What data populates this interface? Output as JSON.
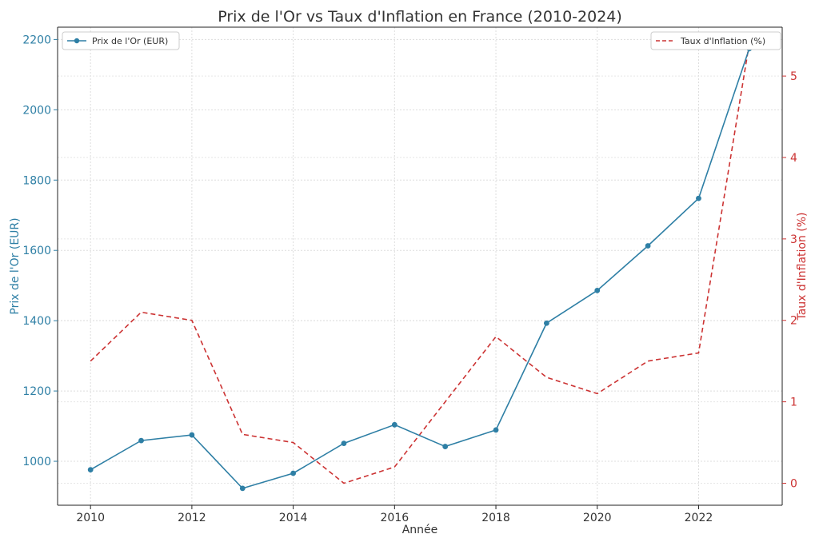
{
  "chart_data": {
    "type": "line",
    "title": "Prix de l'Or vs Taux d'Inflation en France (2010-2024)",
    "xlabel": "Année",
    "ylabel_left": "Prix de l'Or (EUR)",
    "ylabel_right": "Taux d'Inflation (%)",
    "x": [
      2010,
      2011,
      2012,
      2013,
      2014,
      2015,
      2016,
      2017,
      2018,
      2019,
      2020,
      2021,
      2022,
      2023
    ],
    "x_ticks": [
      "2010",
      "2012",
      "2014",
      "2016",
      "2018",
      "2020",
      "2022"
    ],
    "xlim": [
      2009.35,
      2023.65
    ],
    "ylim_left": [
      875,
      2235
    ],
    "ylim_right": [
      -0.27,
      5.6
    ],
    "y_ticks_left": [
      "1000",
      "1200",
      "1400",
      "1600",
      "1800",
      "2000",
      "2200"
    ],
    "y_ticks_right": [
      "0",
      "1",
      "2",
      "3",
      "4",
      "5"
    ],
    "grid": true,
    "series": [
      {
        "name": "Prix de l'Or (EUR)",
        "axis": "left",
        "color": "#2e7fa5",
        "style": "solid-markers",
        "values": [
          976,
          1059,
          1075,
          923,
          966,
          1051,
          1104,
          1042,
          1089,
          1393,
          1486,
          1613,
          1748,
          2174
        ]
      },
      {
        "name": "Taux d'Inflation (%)",
        "axis": "right",
        "color": "#cc3333",
        "style": "dashed",
        "values": [
          1.5,
          2.1,
          2.0,
          0.6,
          0.5,
          0.0,
          0.2,
          1.0,
          1.8,
          1.3,
          1.1,
          1.5,
          1.6,
          5.4
        ]
      }
    ],
    "legend_left": "top-left",
    "legend_right": "top-right"
  }
}
